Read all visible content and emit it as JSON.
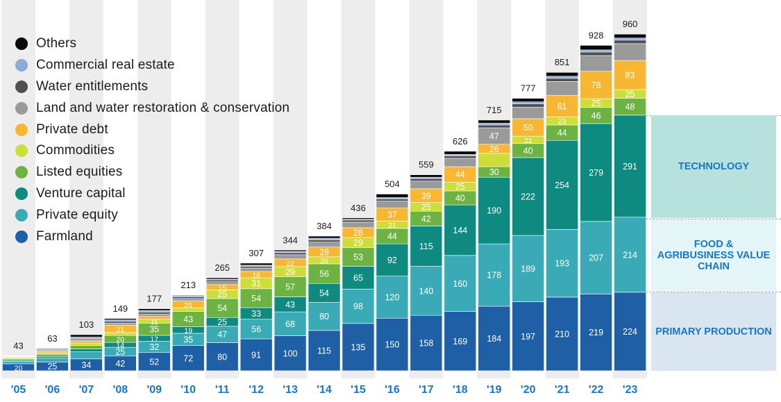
{
  "chart_data": {
    "type": "bar",
    "stacked": true,
    "categories": [
      "'05",
      "'06",
      "'07",
      "'08",
      "'09",
      "'10",
      "'11",
      "'12",
      "'13",
      "'14",
      "'15",
      "'16",
      "'17",
      "'18",
      "'19",
      "'20",
      "'21",
      "'22",
      "'23"
    ],
    "totals": [
      43,
      63,
      103,
      149,
      177,
      213,
      265,
      307,
      344,
      384,
      436,
      504,
      559,
      626,
      715,
      777,
      851,
      928,
      960
    ],
    "ylim": [
      0,
      960
    ],
    "grid": false,
    "legend_position": "top-left",
    "series": [
      {
        "name": "Farmland",
        "color": "#1f5fa5",
        "values": [
          20,
          25,
          34,
          42,
          52,
          72,
          80,
          91,
          100,
          115,
          135,
          150,
          158,
          169,
          184,
          197,
          210,
          219,
          224
        ]
      },
      {
        "name": "Private equity",
        "color": "#3aabb6",
        "values": [
          7,
          11,
          20,
          25,
          32,
          35,
          47,
          56,
          68,
          80,
          98,
          120,
          140,
          160,
          178,
          189,
          193,
          207,
          214
        ]
      },
      {
        "name": "Venture capital",
        "color": "#0f8a80",
        "values": [
          3,
          5,
          8,
          14,
          17,
          19,
          25,
          33,
          43,
          54,
          65,
          92,
          115,
          144,
          190,
          222,
          254,
          279,
          291
        ]
      },
      {
        "name": "Listed equities",
        "color": "#6cb344",
        "values": [
          4,
          6,
          10,
          20,
          35,
          43,
          54,
          54,
          57,
          56,
          53,
          44,
          42,
          40,
          30,
          40,
          44,
          46,
          48
        ]
      },
      {
        "name": "Commodities",
        "color": "#cddd3a",
        "values": [
          3,
          4,
          7,
          8,
          11,
          10,
          25,
          31,
          29,
          20,
          29,
          21,
          25,
          25,
          38,
          21,
          23,
          25,
          25
        ]
      },
      {
        "name": "Private debt",
        "color": "#f7b733",
        "values": [
          2,
          3,
          6,
          21,
          8,
          20,
          15,
          18,
          22,
          28,
          28,
          37,
          39,
          44,
          26,
          50,
          61,
          78,
          83
        ]
      },
      {
        "name": "Land and water restoration & conservation",
        "color": "#9a9a9a",
        "values": [
          1,
          3,
          4,
          6,
          7,
          7,
          8,
          10,
          12,
          14,
          16,
          20,
          22,
          24,
          47,
          33,
          40,
          45,
          48
        ]
      },
      {
        "name": "Water entitlements",
        "color": "#4f4f4f",
        "values": [
          1,
          2,
          3,
          5,
          5,
          5,
          5,
          5,
          6,
          6,
          6,
          6,
          7,
          7,
          8,
          9,
          9,
          10,
          10
        ]
      },
      {
        "name": "Commercial real estate",
        "color": "#8eaadb",
        "values": [
          1,
          2,
          4,
          4,
          5,
          5,
          2,
          3,
          3,
          5,
          2,
          4,
          4,
          4,
          5,
          6,
          6,
          6,
          6
        ]
      },
      {
        "name": "Others",
        "color": "#0a0a0a",
        "values": [
          1,
          2,
          7,
          4,
          5,
          -3,
          4,
          6,
          4,
          6,
          4,
          10,
          7,
          9,
          9,
          10,
          11,
          13,
          11
        ]
      }
    ],
    "value_labels": [
      {
        "series": "Farmland",
        "values": [
          20,
          25,
          34,
          42,
          52,
          72,
          80,
          91,
          100,
          115,
          135,
          150,
          158,
          169,
          184,
          197,
          210,
          219,
          224
        ]
      },
      {
        "series": "Private equity",
        "values": [
          null,
          null,
          null,
          25,
          32,
          35,
          47,
          56,
          68,
          80,
          98,
          120,
          140,
          160,
          178,
          189,
          193,
          207,
          214
        ]
      },
      {
        "series": "Venture capital",
        "values": [
          null,
          null,
          null,
          14,
          17,
          19,
          25,
          33,
          43,
          54,
          65,
          92,
          115,
          144,
          190,
          222,
          254,
          279,
          291
        ]
      },
      {
        "series": "Listed equities",
        "values": [
          null,
          null,
          null,
          20,
          35,
          43,
          54,
          54,
          57,
          56,
          53,
          44,
          42,
          40,
          30,
          40,
          44,
          46,
          48
        ]
      },
      {
        "series": "Commodities",
        "values": [
          null,
          null,
          null,
          null,
          11,
          null,
          25,
          31,
          29,
          20,
          29,
          21,
          25,
          25,
          null,
          21,
          23,
          25,
          25
        ]
      },
      {
        "series": "Private debt",
        "values": [
          null,
          null,
          null,
          21,
          null,
          20,
          15,
          18,
          22,
          28,
          28,
          37,
          39,
          44,
          26,
          50,
          61,
          78,
          83
        ]
      },
      {
        "series": "Land and water restoration & conservation",
        "values": [
          null,
          null,
          null,
          null,
          null,
          null,
          null,
          null,
          null,
          null,
          null,
          null,
          null,
          null,
          47,
          null,
          null,
          null,
          null
        ]
      }
    ],
    "segments_panels": [
      {
        "label": "TECHNOLOGY"
      },
      {
        "label": "FOOD & AGRIBUSINESS VALUE CHAIN"
      },
      {
        "label": "PRIMARY PRODUCTION"
      }
    ],
    "colors": {
      "axis_label": "#1976c2",
      "total_label": "#1a1a1a",
      "column_band": "#ededed",
      "column_band_alt": "#ffffff"
    }
  },
  "legend_order": [
    "Others",
    "Commercial real estate",
    "Water entitlements",
    "Land and water restoration & conservation",
    "Private debt",
    "Commodities",
    "Listed equities",
    "Venture capital",
    "Private equity",
    "Farmland"
  ],
  "panels": {
    "technology": "TECHNOLOGY",
    "food": "FOOD & AGRIBUSINESS VALUE CHAIN",
    "primary": "PRIMARY PRODUCTION"
  }
}
